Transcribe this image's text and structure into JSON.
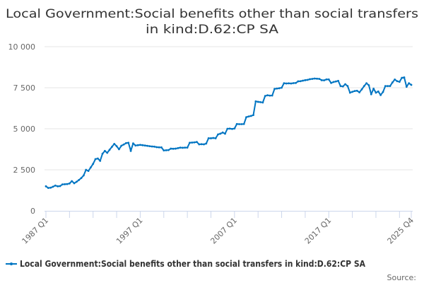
{
  "chart_data": {
    "type": "line",
    "title_lines": [
      "Local Government:Social benefits other than social transfers",
      "in kind:D.62:CP SA"
    ],
    "xlabel": "",
    "ylabel": "",
    "x_start": {
      "year": 1987,
      "quarter": 1
    },
    "x_frequency": "quarterly",
    "x_tick_labels": [
      "1987 Q1",
      "1997 Q1",
      "2007 Q1",
      "2017 Q1",
      "2025 Q4"
    ],
    "y_tick_labels": [
      "0",
      "2 500",
      "5 000",
      "7 500",
      "10 000"
    ],
    "y_ticks": [
      0,
      2500,
      5000,
      7500,
      10000
    ],
    "ylim": [
      0,
      10000
    ],
    "grid": true,
    "legend_position": "bottom",
    "series": [
      {
        "name": "Local Government:Social benefits other than social transfers in kind:D.62:CP SA",
        "color": "#0075c2",
        "values": [
          1495,
          1394,
          1410,
          1470,
          1540,
          1495,
          1510,
          1610,
          1620,
          1630,
          1667,
          1810,
          1680,
          1770,
          1880,
          2000,
          2155,
          2500,
          2430,
          2645,
          2860,
          3150,
          3190,
          3046,
          3480,
          3650,
          3535,
          3720,
          3900,
          4080,
          3940,
          3750,
          3965,
          4040,
          4125,
          4150,
          3650,
          4110,
          3980,
          4000,
          4020,
          4000,
          3980,
          3960,
          3940,
          3920,
          3910,
          3880,
          3870,
          3865,
          3680,
          3690,
          3700,
          3790,
          3780,
          3790,
          3820,
          3850,
          3840,
          3850,
          3850,
          4150,
          4160,
          4170,
          4195,
          4050,
          4060,
          4050,
          4100,
          4425,
          4420,
          4440,
          4420,
          4655,
          4700,
          4770,
          4700,
          5000,
          5010,
          4990,
          5015,
          5290,
          5280,
          5280,
          5290,
          5705,
          5750,
          5780,
          5835,
          6670,
          6640,
          6620,
          6600,
          7000,
          7040,
          7020,
          7025,
          7430,
          7450,
          7470,
          7500,
          7775,
          7760,
          7770,
          7760,
          7780,
          7790,
          7890,
          7900,
          7930,
          7960,
          7980,
          8020,
          8040,
          8060,
          8050,
          8040,
          7960,
          7950,
          8005,
          8005,
          7790,
          7850,
          7880,
          7920,
          7600,
          7580,
          7715,
          7600,
          7200,
          7250,
          7300,
          7315,
          7220,
          7400,
          7600,
          7775,
          7650,
          7100,
          7445,
          7200,
          7270,
          7055,
          7240,
          7600,
          7600,
          7600,
          7820,
          8000,
          7900,
          7860,
          8105,
          8130,
          7560,
          7775,
          7675
        ]
      }
    ]
  },
  "footer": {
    "source_label": "Source:"
  }
}
